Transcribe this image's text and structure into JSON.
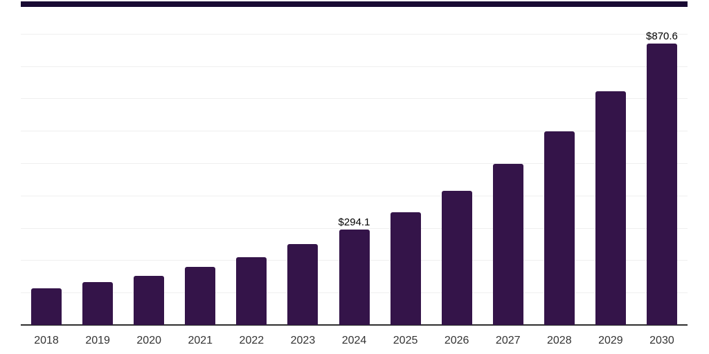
{
  "chart_data": {
    "type": "bar",
    "title": "",
    "xlabel": "",
    "ylabel": "",
    "categories": [
      "2018",
      "2019",
      "2020",
      "2021",
      "2022",
      "2023",
      "2024",
      "2025",
      "2026",
      "2027",
      "2028",
      "2029",
      "2030"
    ],
    "values": [
      112.4,
      132.5,
      151.0,
      179.5,
      210.0,
      249.5,
      294.1,
      348.0,
      415.0,
      497.0,
      598.0,
      722.0,
      870.6
    ],
    "data_labels": [
      {
        "index": 6,
        "text": "$294.1"
      },
      {
        "index": 12,
        "text": "$870.6"
      }
    ],
    "ylim": [
      0,
      1000
    ],
    "gridline_step": 100,
    "grid": "horizontal-only",
    "y_tick_labels_visible": false,
    "legend": "none",
    "colors": {
      "bar_fill": "#341449",
      "top_rule": "#190a33",
      "axis_line": "#2d2d2d",
      "gridline": "#efefef",
      "value_label": "#000000",
      "tick_label": "#333333",
      "background": "#ffffff"
    }
  }
}
